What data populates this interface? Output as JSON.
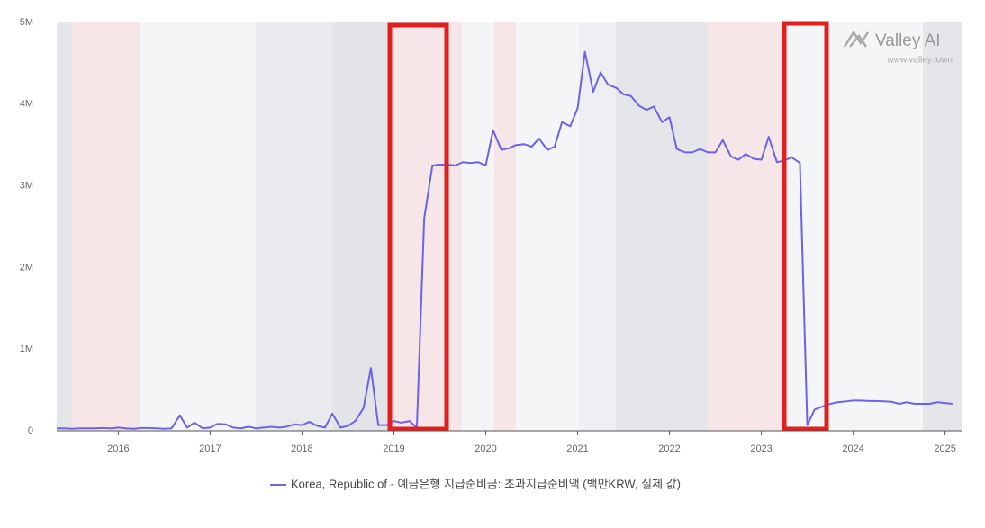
{
  "chart_data": {
    "type": "line",
    "legend": "Korea, Republic of - 예금은행 지급준비금: 초과지급준비액 (백만KRW, 실제 값)",
    "watermark": "Valley AI",
    "watermark_url": "www.valley.town",
    "color": "#6c63e6",
    "xlim": [
      2015.33,
      2025.18
    ],
    "xticks": [
      2016,
      2017,
      2018,
      2019,
      2020,
      2021,
      2022,
      2023,
      2024,
      2025
    ],
    "ylim": [
      0,
      5000000
    ],
    "yticks": [
      {
        "value": 0,
        "label": "0"
      },
      {
        "value": 1000000,
        "label": "1M"
      },
      {
        "value": 2000000,
        "label": "2M"
      },
      {
        "value": 3000000,
        "label": "3M"
      },
      {
        "value": 4000000,
        "label": "4M"
      },
      {
        "value": 5000000,
        "label": "5M"
      }
    ],
    "x": [
      2015.33,
      2015.42,
      2015.5,
      2015.58,
      2015.67,
      2015.75,
      2015.83,
      2015.92,
      2016.0,
      2016.08,
      2016.17,
      2016.25,
      2016.33,
      2016.42,
      2016.5,
      2016.58,
      2016.67,
      2016.75,
      2016.83,
      2016.92,
      2017.0,
      2017.08,
      2017.17,
      2017.25,
      2017.33,
      2017.42,
      2017.5,
      2017.58,
      2017.67,
      2017.75,
      2017.83,
      2017.92,
      2018.0,
      2018.08,
      2018.17,
      2018.25,
      2018.33,
      2018.42,
      2018.5,
      2018.58,
      2018.67,
      2018.75,
      2018.83,
      2018.92,
      2019.0,
      2019.08,
      2019.17,
      2019.25,
      2019.33,
      2019.42,
      2019.5,
      2019.58,
      2019.67,
      2019.75,
      2019.83,
      2019.92,
      2020.0,
      2020.08,
      2020.17,
      2020.25,
      2020.33,
      2020.42,
      2020.5,
      2020.58,
      2020.67,
      2020.75,
      2020.83,
      2020.92,
      2021.0,
      2021.08,
      2021.17,
      2021.25,
      2021.33,
      2021.42,
      2021.5,
      2021.58,
      2021.67,
      2021.75,
      2021.83,
      2021.92,
      2022.0,
      2022.08,
      2022.17,
      2022.25,
      2022.33,
      2022.42,
      2022.5,
      2022.58,
      2022.67,
      2022.75,
      2022.83,
      2022.92,
      2023.0,
      2023.08,
      2023.17,
      2023.25,
      2023.33,
      2023.42,
      2023.5,
      2023.58,
      2023.67,
      2023.75,
      2023.83,
      2023.92,
      2024.0,
      2024.08,
      2024.17,
      2024.25,
      2024.33,
      2024.42,
      2024.5,
      2024.58,
      2024.67,
      2024.75,
      2024.83,
      2024.92,
      2025.0,
      2025.08
    ],
    "values": [
      30000,
      30000,
      25000,
      30000,
      30000,
      30000,
      35000,
      30000,
      40000,
      30000,
      25000,
      35000,
      35000,
      30000,
      25000,
      30000,
      190000,
      40000,
      100000,
      30000,
      40000,
      85000,
      80000,
      40000,
      30000,
      50000,
      30000,
      40000,
      50000,
      40000,
      50000,
      80000,
      70000,
      110000,
      60000,
      40000,
      210000,
      40000,
      60000,
      120000,
      280000,
      770000,
      70000,
      70000,
      120000,
      100000,
      120000,
      40000,
      2600000,
      3250000,
      3260000,
      3260000,
      3250000,
      3290000,
      3280000,
      3290000,
      3250000,
      3680000,
      3440000,
      3460000,
      3500000,
      3510000,
      3480000,
      3580000,
      3440000,
      3480000,
      3780000,
      3730000,
      3950000,
      4640000,
      4150000,
      4390000,
      4240000,
      4200000,
      4120000,
      4100000,
      3980000,
      3930000,
      3970000,
      3780000,
      3840000,
      3450000,
      3410000,
      3410000,
      3450000,
      3410000,
      3410000,
      3560000,
      3360000,
      3320000,
      3390000,
      3330000,
      3320000,
      3600000,
      3290000,
      3310000,
      3350000,
      3280000,
      70000,
      260000,
      300000,
      330000,
      350000,
      360000,
      370000,
      370000,
      365000,
      365000,
      360000,
      355000,
      330000,
      350000,
      330000,
      330000,
      330000,
      350000,
      340000,
      330000
    ]
  }
}
